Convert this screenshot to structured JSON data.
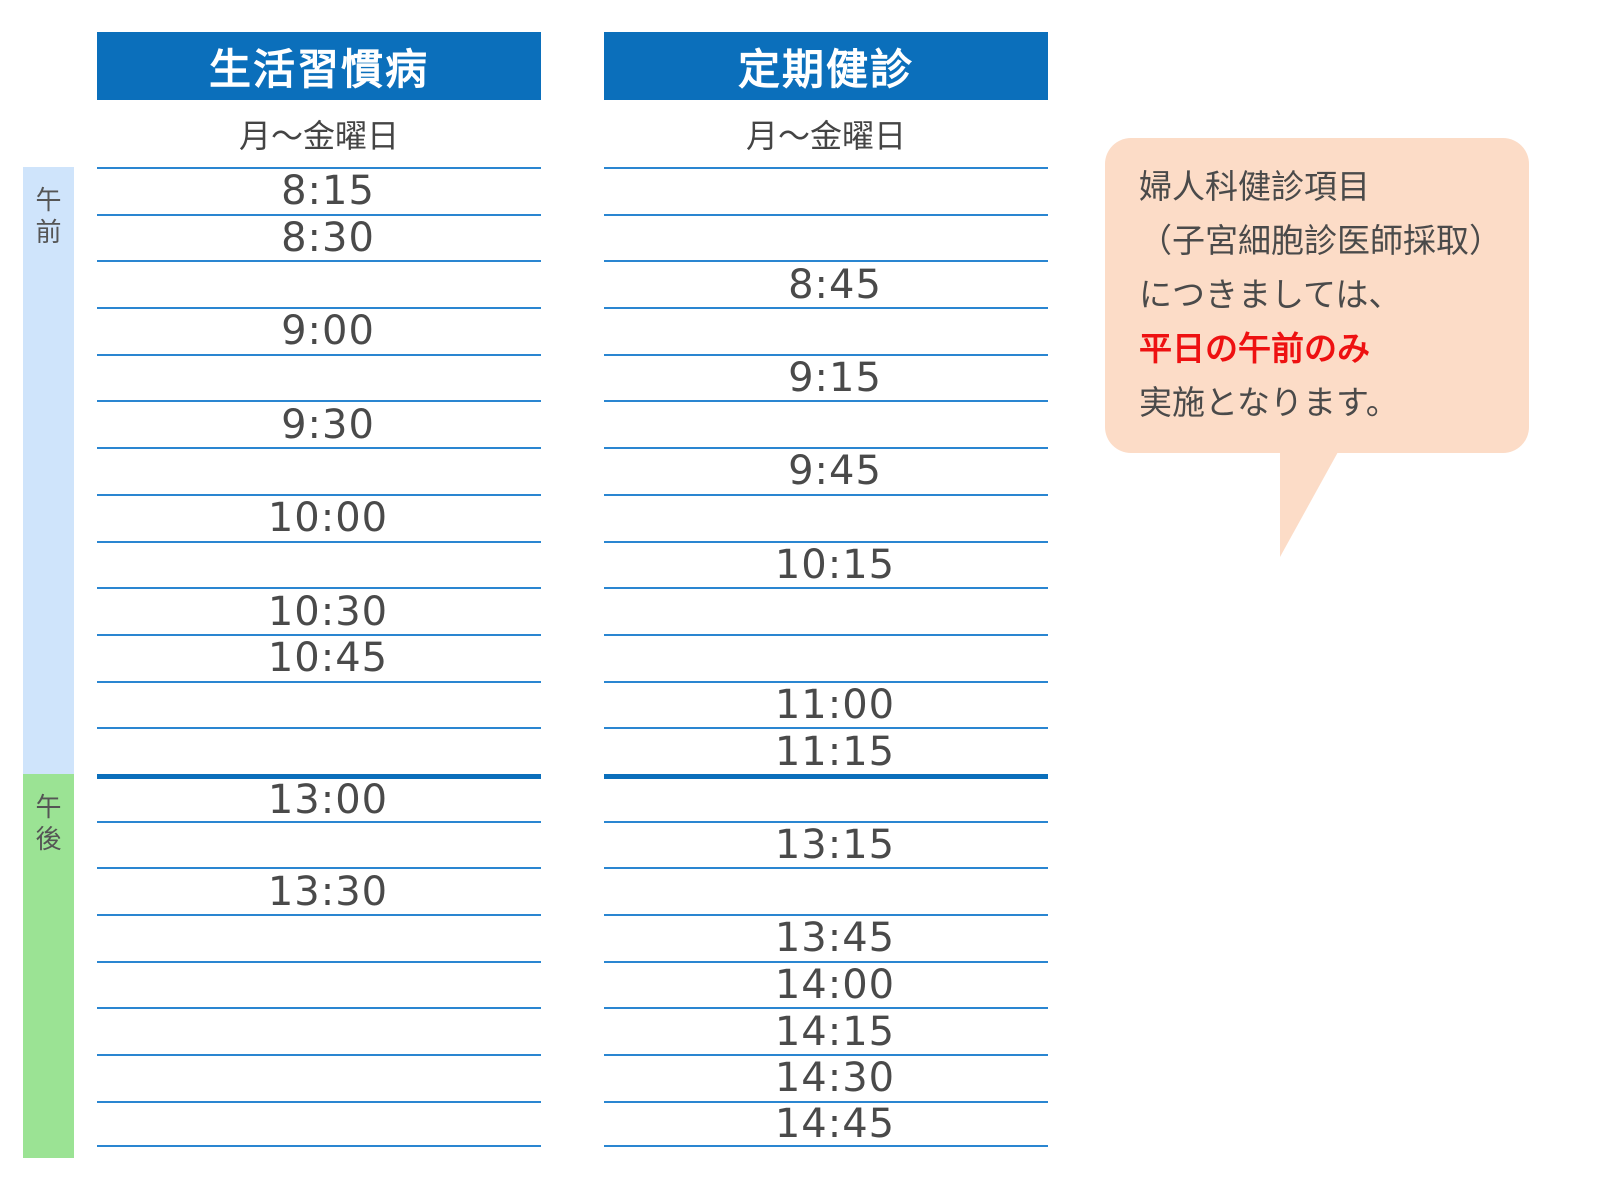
{
  "periods": {
    "am": "午前",
    "pm": "午後"
  },
  "columns": [
    {
      "title": "生活習慣病",
      "days": "月～金曜日",
      "slots": [
        "8:15",
        "8:30",
        "",
        "9:00",
        "",
        "9:30",
        "",
        "10:00",
        "",
        "10:30",
        "10:45",
        "",
        "",
        "13:00",
        "",
        "13:30",
        "",
        "",
        "",
        "",
        ""
      ]
    },
    {
      "title": "定期健診",
      "days": "月～金曜日",
      "slots": [
        "",
        "",
        "8:45",
        "",
        "9:15",
        "",
        "9:45",
        "",
        "10:15",
        "",
        "",
        "11:00",
        "11:15",
        "",
        "13:15",
        "",
        "13:45",
        "14:00",
        "14:15",
        "14:30",
        "14:45"
      ]
    }
  ],
  "note": {
    "lines": [
      {
        "text": "婦人科健診項目",
        "highlight": false
      },
      {
        "text": "（子宮細胞診医師採取）",
        "highlight": false
      },
      {
        "text": "につきましては、",
        "highlight": false
      },
      {
        "text": "平日の午前のみ",
        "highlight": true
      },
      {
        "text": "実施となります。",
        "highlight": false
      }
    ]
  },
  "colors": {
    "header": "#0b6fbb",
    "am": "#cfe4fb",
    "pm": "#9be394",
    "note_bg": "#fcdcc7",
    "highlight": "#ee1111"
  }
}
